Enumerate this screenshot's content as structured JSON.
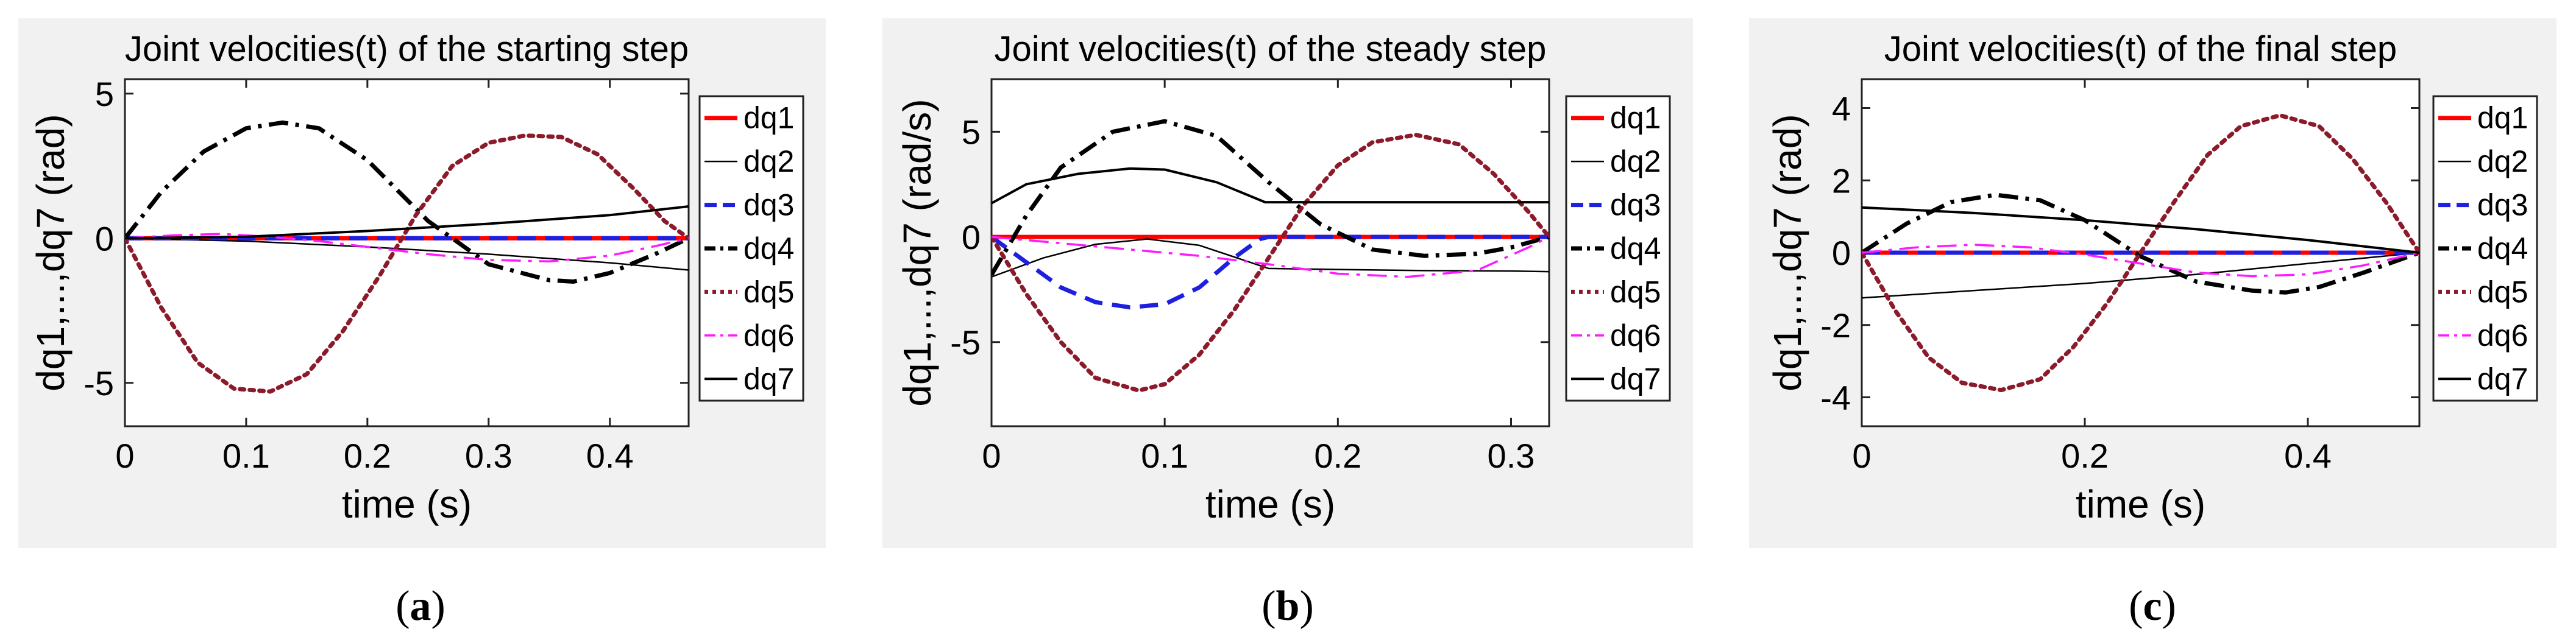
{
  "chart_data": [
    {
      "type": "line",
      "caption": "(a)",
      "caption_letter": "a",
      "title": "Joint velocities(t) of the starting step",
      "xlabel": "time (s)",
      "ylabel": "dq1,...,dq7 (rad)",
      "xlim": [
        0,
        0.465
      ],
      "ylim": [
        -6.5,
        5.5
      ],
      "xticks": [
        0,
        0.1,
        0.2,
        0.3,
        0.4
      ],
      "xtick_labels": [
        "0",
        "0.1",
        "0.2",
        "0.3",
        "0.4"
      ],
      "yticks": [
        5,
        0,
        -5
      ],
      "ytick_labels": [
        "5",
        "0",
        "-5"
      ],
      "legend": [
        "dq1",
        "dq2",
        "dq3",
        "dq4",
        "dq5",
        "dq6",
        "dq7"
      ],
      "series": [
        {
          "name": "dq1",
          "color": "#ff0000",
          "style": "solid",
          "width": 7,
          "x": [
            0,
            0.465
          ],
          "y": [
            0,
            0
          ]
        },
        {
          "name": "dq2",
          "color": "#000000",
          "style": "solid",
          "width": 2.5,
          "x": [
            0,
            0.1,
            0.2,
            0.3,
            0.4,
            0.465
          ],
          "y": [
            0,
            -0.1,
            -0.3,
            -0.55,
            -0.85,
            -1.1
          ]
        },
        {
          "name": "dq3",
          "color": "#1f1fe0",
          "style": "dash",
          "width": 7,
          "x": [
            0,
            0.465
          ],
          "y": [
            0,
            0
          ]
        },
        {
          "name": "dq4",
          "color": "#000000",
          "style": "dashdot",
          "width": 7,
          "x": [
            0,
            0.03,
            0.065,
            0.1,
            0.13,
            0.16,
            0.2,
            0.25,
            0.3,
            0.35,
            0.37,
            0.4,
            0.44,
            0.465
          ],
          "y": [
            0,
            1.6,
            3.0,
            3.8,
            4.0,
            3.8,
            2.7,
            0.6,
            -0.9,
            -1.45,
            -1.5,
            -1.2,
            -0.5,
            0
          ]
        },
        {
          "name": "dq5",
          "color": "#8b1a2a",
          "style": "dot",
          "width": 7,
          "x": [
            0,
            0.03,
            0.06,
            0.09,
            0.12,
            0.15,
            0.18,
            0.21,
            0.24,
            0.27,
            0.3,
            0.33,
            0.36,
            0.39,
            0.42,
            0.445,
            0.465
          ],
          "y": [
            0,
            -2.4,
            -4.3,
            -5.2,
            -5.3,
            -4.7,
            -3.2,
            -1.3,
            0.8,
            2.5,
            3.3,
            3.55,
            3.5,
            2.9,
            1.7,
            0.6,
            0
          ]
        },
        {
          "name": "dq6",
          "color": "#ff1aff",
          "style": "dashdot",
          "width": 3.5,
          "x": [
            0,
            0.04,
            0.08,
            0.12,
            0.16,
            0.2,
            0.25,
            0.3,
            0.35,
            0.4,
            0.44,
            0.465
          ],
          "y": [
            0,
            0.1,
            0.15,
            0.05,
            -0.1,
            -0.3,
            -0.55,
            -0.75,
            -0.8,
            -0.6,
            -0.25,
            0
          ]
        },
        {
          "name": "dq7",
          "color": "#000000",
          "style": "solid",
          "width": 4,
          "x": [
            0,
            0.1,
            0.2,
            0.3,
            0.4,
            0.465
          ],
          "y": [
            0,
            0.05,
            0.25,
            0.5,
            0.8,
            1.1
          ]
        }
      ]
    },
    {
      "type": "line",
      "caption": "(b)",
      "caption_letter": "b",
      "title": "Joint velocities(t) of the steady step",
      "xlabel": "time (s)",
      "ylabel": "dq1,...,dq7 (rad/s)",
      "xlim": [
        0,
        0.322
      ],
      "ylim": [
        -9,
        7.5
      ],
      "xticks": [
        0,
        0.1,
        0.2,
        0.3
      ],
      "xtick_labels": [
        "0",
        "0.1",
        "0.2",
        "0.3"
      ],
      "yticks": [
        5,
        0,
        -5
      ],
      "ytick_labels": [
        "5",
        "0",
        "-5"
      ],
      "legend": [
        "dq1",
        "dq2",
        "dq3",
        "dq4",
        "dq5",
        "dq6",
        "dq7"
      ],
      "series": [
        {
          "name": "dq1",
          "color": "#ff0000",
          "style": "solid",
          "width": 7,
          "x": [
            0,
            0.322
          ],
          "y": [
            0,
            0
          ]
        },
        {
          "name": "dq2",
          "color": "#000000",
          "style": "solid",
          "width": 2.5,
          "x": [
            0,
            0.03,
            0.06,
            0.09,
            0.12,
            0.16,
            0.2,
            0.25,
            0.3,
            0.322
          ],
          "y": [
            -1.9,
            -1.0,
            -0.35,
            -0.1,
            -0.4,
            -1.5,
            -1.55,
            -1.6,
            -1.62,
            -1.65
          ]
        },
        {
          "name": "dq3",
          "color": "#1f1fe0",
          "style": "dash",
          "width": 7,
          "x": [
            0,
            0.02,
            0.04,
            0.06,
            0.08,
            0.1,
            0.12,
            0.14,
            0.155,
            0.16,
            0.322
          ],
          "y": [
            0,
            -1.2,
            -2.4,
            -3.1,
            -3.35,
            -3.2,
            -2.4,
            -1.0,
            -0.1,
            0,
            0
          ]
        },
        {
          "name": "dq4",
          "color": "#000000",
          "style": "dashdot",
          "width": 7,
          "x": [
            0,
            0.02,
            0.04,
            0.07,
            0.1,
            0.13,
            0.16,
            0.19,
            0.22,
            0.25,
            0.28,
            0.3,
            0.322
          ],
          "y": [
            -1.8,
            1.0,
            3.3,
            5.0,
            5.5,
            4.8,
            2.6,
            0.6,
            -0.6,
            -0.9,
            -0.8,
            -0.5,
            0
          ]
        },
        {
          "name": "dq5",
          "color": "#8b1a2a",
          "style": "dot",
          "width": 7,
          "x": [
            0,
            0.02,
            0.04,
            0.06,
            0.085,
            0.1,
            0.12,
            0.14,
            0.16,
            0.18,
            0.2,
            0.22,
            0.245,
            0.27,
            0.29,
            0.31,
            0.322
          ],
          "y": [
            0,
            -2.7,
            -5.0,
            -6.7,
            -7.3,
            -7.0,
            -5.6,
            -3.5,
            -1.0,
            1.5,
            3.4,
            4.5,
            4.85,
            4.4,
            3.0,
            1.2,
            0
          ]
        },
        {
          "name": "dq6",
          "color": "#ff1aff",
          "style": "dashdot",
          "width": 3.5,
          "x": [
            0,
            0.04,
            0.08,
            0.12,
            0.16,
            0.2,
            0.24,
            0.28,
            0.31,
            0.322
          ],
          "y": [
            0,
            -0.3,
            -0.6,
            -0.9,
            -1.3,
            -1.75,
            -1.9,
            -1.6,
            -0.5,
            0
          ]
        },
        {
          "name": "dq7",
          "color": "#000000",
          "style": "solid",
          "width": 4,
          "x": [
            0,
            0.02,
            0.05,
            0.08,
            0.1,
            0.13,
            0.158,
            0.2,
            0.25,
            0.3,
            0.322
          ],
          "y": [
            1.6,
            2.5,
            3.0,
            3.25,
            3.2,
            2.6,
            1.65,
            1.65,
            1.65,
            1.65,
            1.65
          ]
        }
      ]
    },
    {
      "type": "line",
      "caption": "(c)",
      "caption_letter": "c",
      "title": "Joint velocities(t) of the final step",
      "xlabel": "time (s)",
      "ylabel": "dq1,...,dq7 (rad)",
      "xlim": [
        0,
        0.5
      ],
      "ylim": [
        -4.8,
        4.8
      ],
      "xticks": [
        0,
        0.2,
        0.4
      ],
      "xtick_labels": [
        "0",
        "0.2",
        "0.4"
      ],
      "yticks": [
        4,
        2,
        0,
        -2,
        -4
      ],
      "ytick_labels": [
        "4",
        "2",
        "0",
        "-2",
        "-4"
      ],
      "legend": [
        "dq1",
        "dq2",
        "dq3",
        "dq4",
        "dq5",
        "dq6",
        "dq7"
      ],
      "series": [
        {
          "name": "dq1",
          "color": "#ff0000",
          "style": "solid",
          "width": 7,
          "x": [
            0,
            0.5
          ],
          "y": [
            0,
            0
          ]
        },
        {
          "name": "dq2",
          "color": "#000000",
          "style": "solid",
          "width": 2.5,
          "x": [
            0,
            0.1,
            0.2,
            0.3,
            0.4,
            0.5
          ],
          "y": [
            -1.25,
            -1.05,
            -0.85,
            -0.6,
            -0.3,
            0
          ]
        },
        {
          "name": "dq3",
          "color": "#1f1fe0",
          "style": "dash",
          "width": 7,
          "x": [
            0,
            0.5
          ],
          "y": [
            0,
            0
          ]
        },
        {
          "name": "dq4",
          "color": "#000000",
          "style": "dashdot",
          "width": 7,
          "x": [
            0,
            0.04,
            0.08,
            0.12,
            0.16,
            0.2,
            0.25,
            0.3,
            0.35,
            0.38,
            0.41,
            0.45,
            0.5
          ],
          "y": [
            0,
            0.8,
            1.4,
            1.6,
            1.45,
            0.9,
            -0.1,
            -0.8,
            -1.05,
            -1.1,
            -0.95,
            -0.55,
            0
          ]
        },
        {
          "name": "dq5",
          "color": "#8b1a2a",
          "style": "dot",
          "width": 7,
          "x": [
            0,
            0.03,
            0.06,
            0.09,
            0.125,
            0.16,
            0.19,
            0.22,
            0.25,
            0.28,
            0.31,
            0.34,
            0.375,
            0.41,
            0.44,
            0.47,
            0.5
          ],
          "y": [
            0,
            -1.6,
            -2.9,
            -3.6,
            -3.8,
            -3.5,
            -2.6,
            -1.4,
            0,
            1.4,
            2.7,
            3.5,
            3.8,
            3.5,
            2.6,
            1.4,
            0
          ]
        },
        {
          "name": "dq6",
          "color": "#ff1aff",
          "style": "dashdot",
          "width": 3.5,
          "x": [
            0,
            0.05,
            0.1,
            0.15,
            0.2,
            0.25,
            0.3,
            0.35,
            0.4,
            0.45,
            0.5
          ],
          "y": [
            0,
            0.15,
            0.22,
            0.15,
            -0.05,
            -0.3,
            -0.55,
            -0.65,
            -0.6,
            -0.35,
            0
          ]
        },
        {
          "name": "dq7",
          "color": "#000000",
          "style": "solid",
          "width": 4,
          "x": [
            0,
            0.1,
            0.2,
            0.3,
            0.4,
            0.5
          ],
          "y": [
            1.25,
            1.1,
            0.9,
            0.65,
            0.35,
            0
          ]
        }
      ]
    }
  ]
}
